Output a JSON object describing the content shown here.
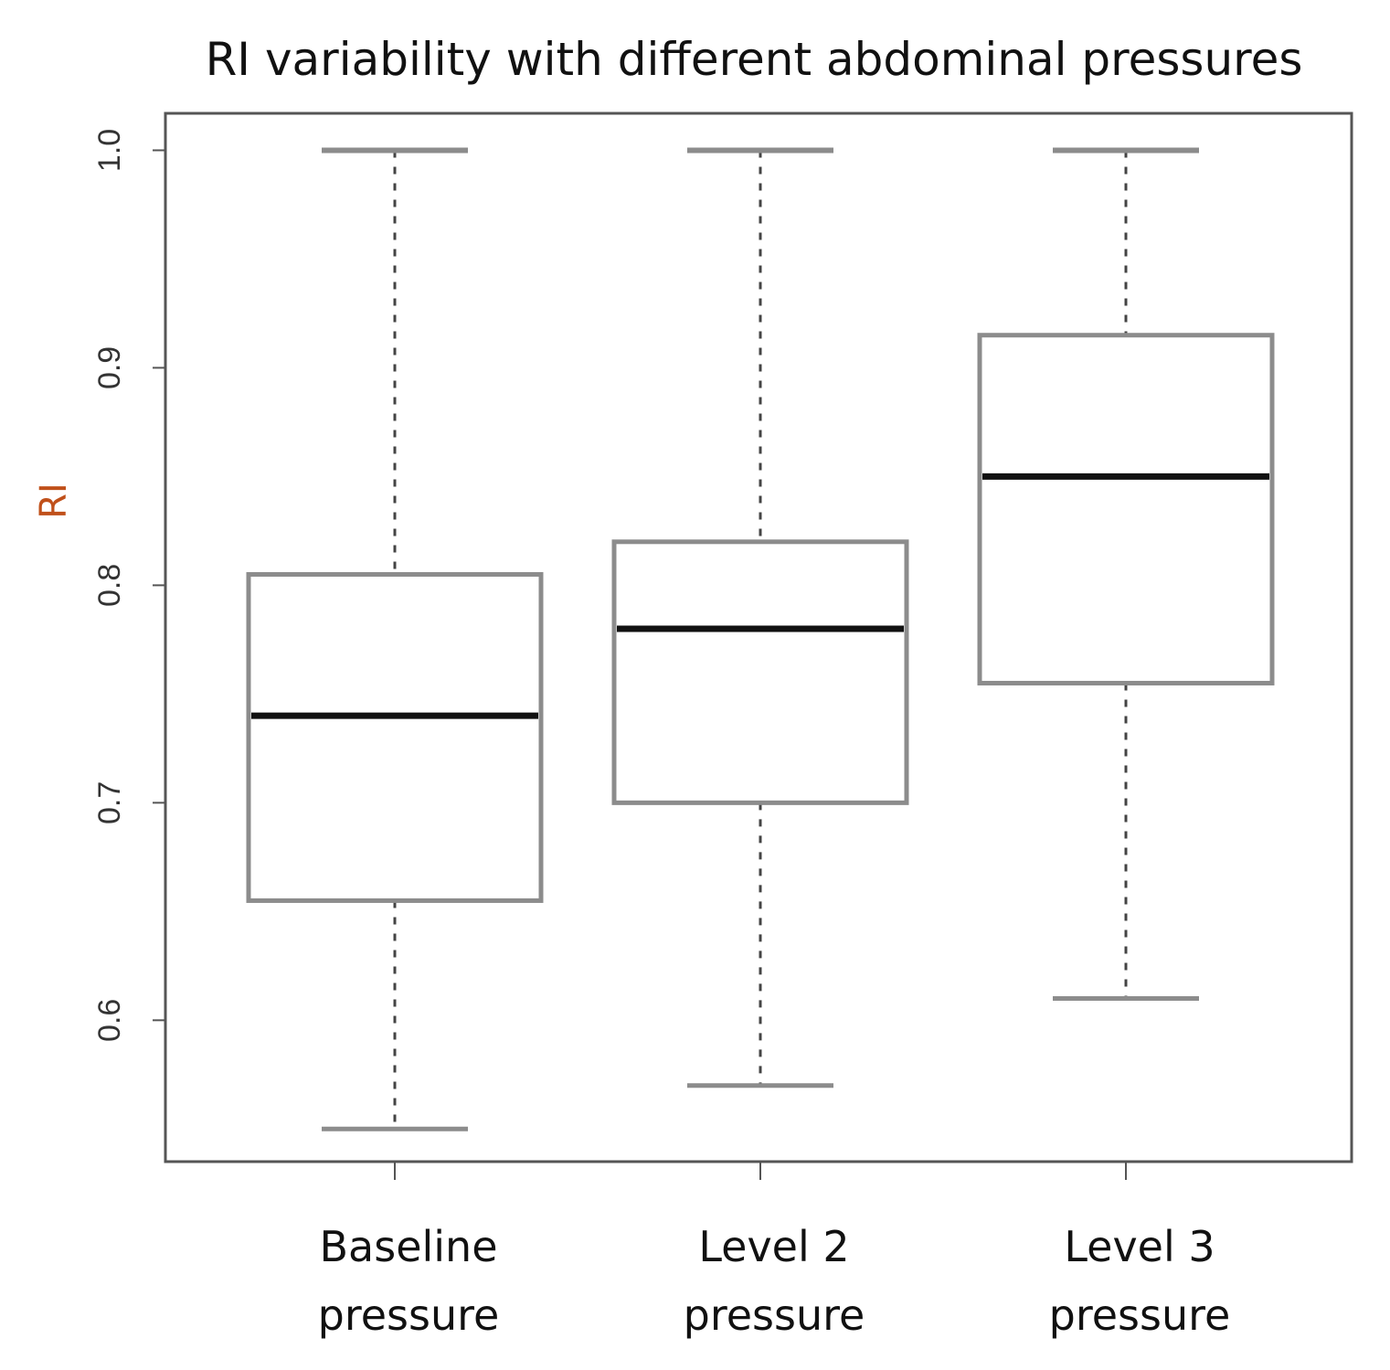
{
  "chart_data": {
    "type": "boxplot",
    "title": "RI variability with different abdominal pressures",
    "xlabel": "",
    "ylabel": "RI",
    "ylim": [
      0.535,
      1.017
    ],
    "yticks": [
      0.6,
      0.7,
      0.8,
      0.9,
      1.0
    ],
    "ytick_labels": [
      "0.6",
      "0.7",
      "0.8",
      "0.9",
      "1.0"
    ],
    "categories": [
      {
        "line1": "Baseline",
        "line2": "pressure"
      },
      {
        "line1": "Level 2",
        "line2": "pressure"
      },
      {
        "line1": "Level 3",
        "line2": "pressure"
      }
    ],
    "boxes": [
      {
        "min": 0.55,
        "q1": 0.655,
        "median": 0.74,
        "q3": 0.805,
        "max": 1.0
      },
      {
        "min": 0.57,
        "q1": 0.7,
        "median": 0.78,
        "q3": 0.82,
        "max": 1.0
      },
      {
        "min": 0.61,
        "q1": 0.755,
        "median": 0.85,
        "q3": 0.915,
        "max": 1.0
      }
    ],
    "grid": false,
    "colors": {
      "box": "#8c8c8c",
      "median": "#111111",
      "frame": "#555555",
      "ylabel": "#c0501a"
    }
  }
}
